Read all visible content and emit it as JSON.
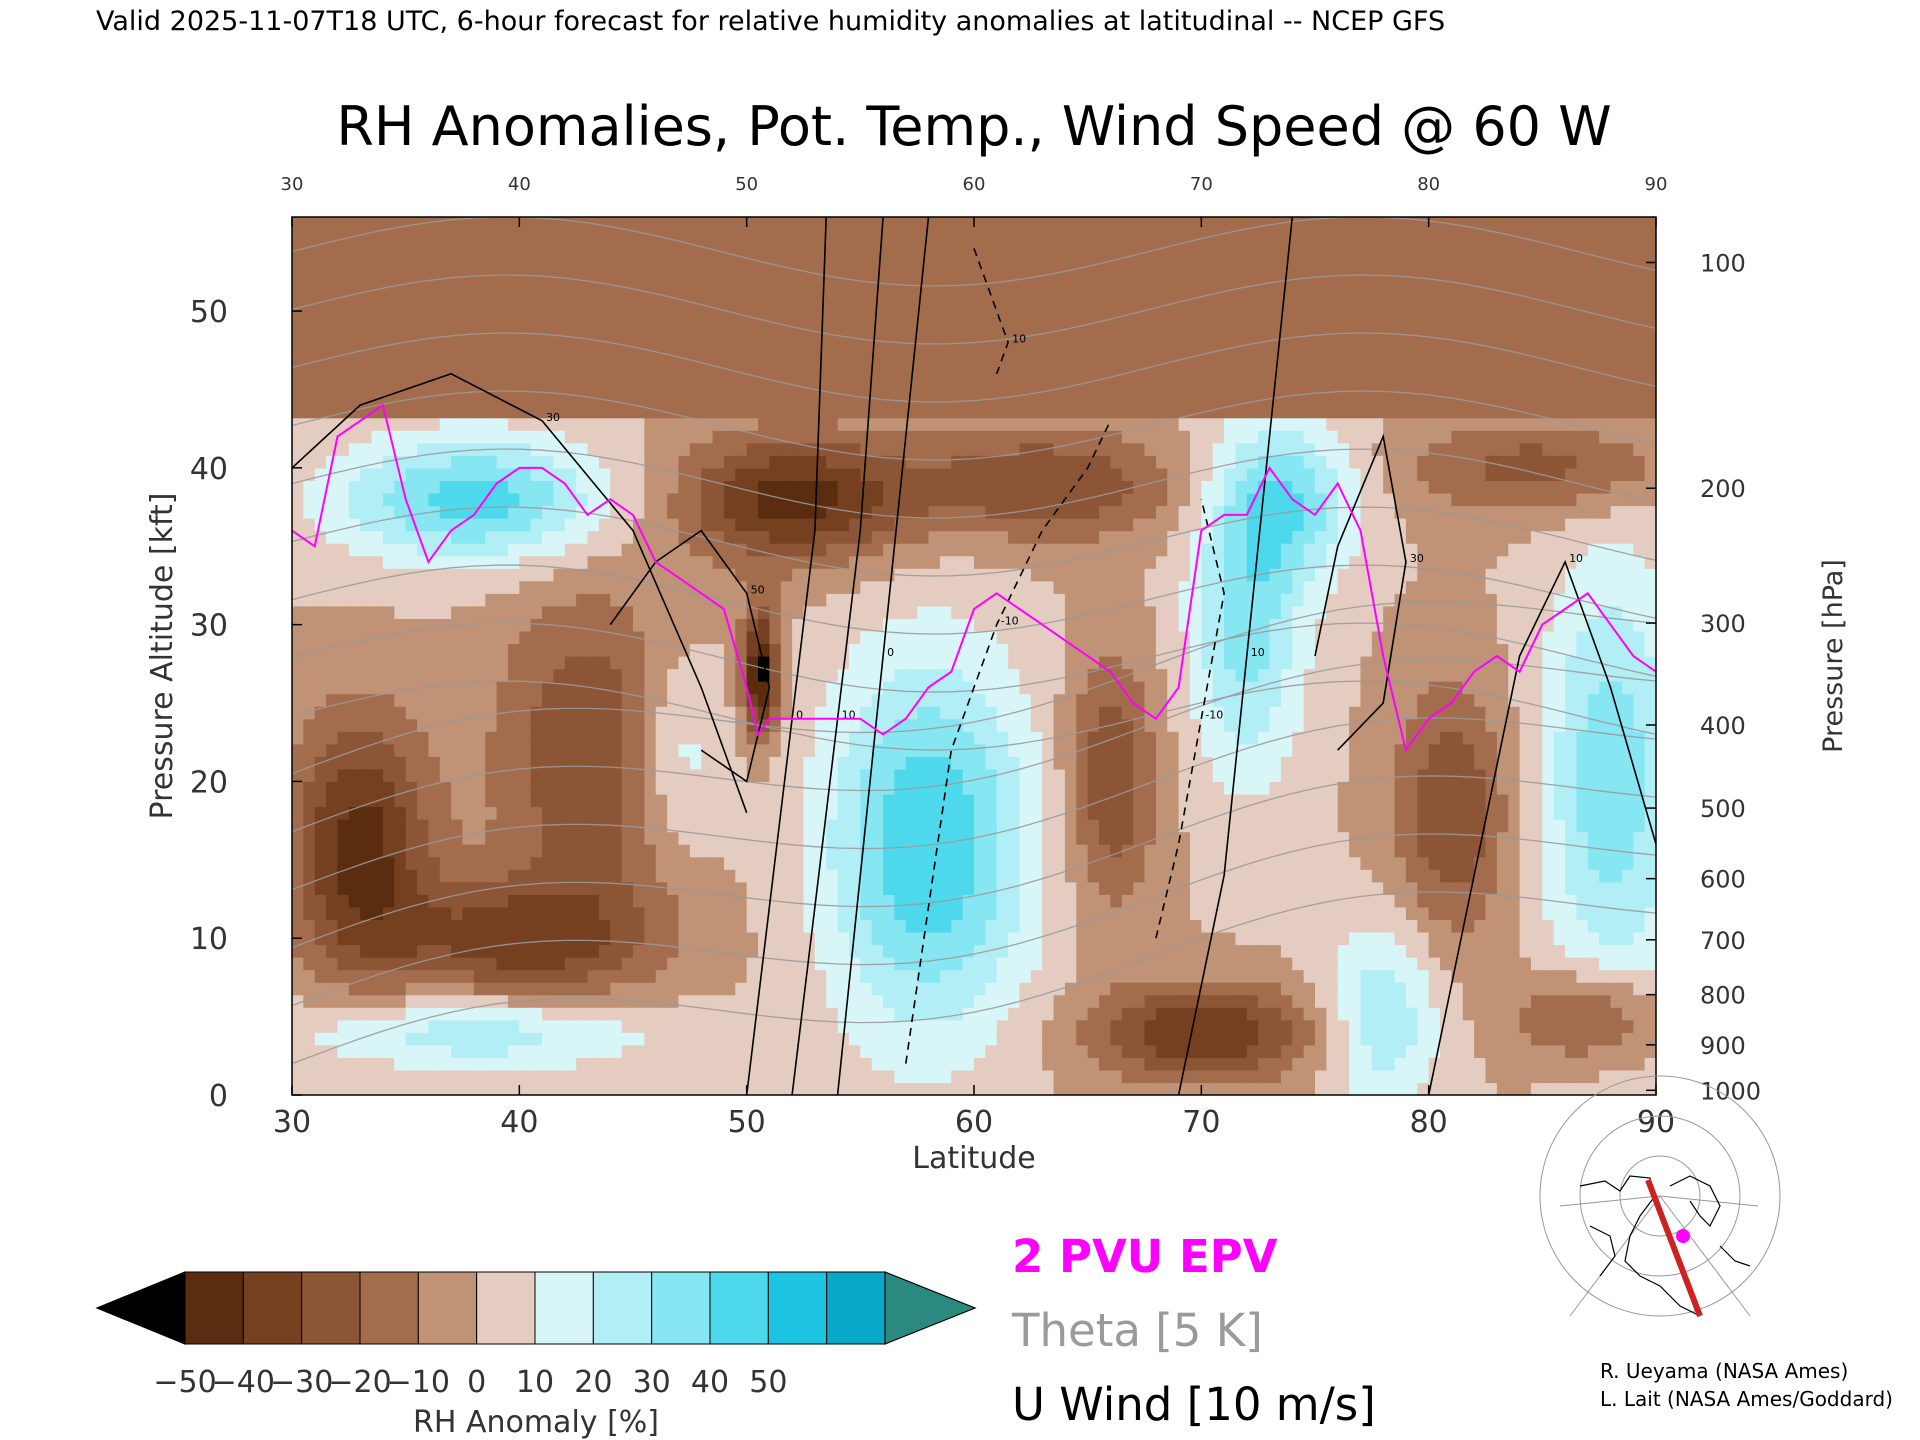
{
  "header": "Valid 2025-11-07T18 UTC, 6-hour forecast for relative humidity anomalies at latitudinal -- NCEP GFS",
  "credits": [
    "R. Ueyama (NASA Ames)",
    "L. Lait (NASA Ames/Goddard)"
  ],
  "legend_lines": {
    "epv": "2 PVU EPV",
    "theta": "Theta [5 K]",
    "wind": "U Wind [10 m/s]"
  },
  "colors": {
    "epv": "#ff00ff",
    "theta": "#9a9a9a",
    "wind": "#000000",
    "section_line": "#cc2222"
  },
  "chart_data": {
    "type": "heatmap",
    "title": "RH Anomalies, Pot. Temp., Wind Speed @ 60 W",
    "xlabel": "Latitude",
    "ylabel": "Pressure Altitude [kft]",
    "y2label": "Pressure [hPa]",
    "xlim": [
      30,
      90
    ],
    "ylim": [
      0,
      56
    ],
    "x_ticks": [
      30,
      40,
      50,
      60,
      70,
      80,
      90
    ],
    "top_ticks": [
      30,
      40,
      50,
      60,
      70,
      80,
      90
    ],
    "y_ticks": [
      0,
      10,
      20,
      30,
      40,
      50
    ],
    "pressure_ticks": [
      {
        "hPa": "100",
        "kft": 53.1
      },
      {
        "hPa": "200",
        "kft": 38.7
      },
      {
        "hPa": "300",
        "kft": 30.1
      },
      {
        "hPa": "400",
        "kft": 23.6
      },
      {
        "hPa": "500",
        "kft": 18.3
      },
      {
        "hPa": "600",
        "kft": 13.8
      },
      {
        "hPa": "700",
        "kft": 9.9
      },
      {
        "hPa": "800",
        "kft": 6.4
      },
      {
        "hPa": "900",
        "kft": 3.2
      },
      {
        "hPa": "1000",
        "kft": 0.3
      }
    ],
    "colorbar": {
      "label": "RH Anomaly [%]",
      "tick_labels": [
        "−50",
        "−40",
        "−30",
        "−20",
        "−10",
        "0",
        "10",
        "20",
        "30",
        "40",
        "50"
      ],
      "levels": [
        -50,
        -40,
        -30,
        -20,
        -10,
        0,
        10,
        20,
        30,
        40,
        50
      ],
      "colors": [
        "#000000",
        "#5a2c10",
        "#744020",
        "#8c5535",
        "#a36c4c",
        "#c09276",
        "#e5ccc0",
        "#d8f6f8",
        "#b2eef6",
        "#86e6f2",
        "#4ed8ec",
        "#1cc4e2",
        "#0aa8c8",
        "#2a8a80"
      ]
    },
    "epv_2pvu": {
      "x": [
        30,
        31,
        32,
        33,
        34,
        35,
        36,
        37,
        38,
        39,
        40,
        41,
        42,
        43,
        44,
        45,
        46,
        47,
        48,
        49,
        50,
        50.5,
        51,
        52,
        53,
        54,
        55,
        56,
        57,
        58,
        59,
        60,
        61,
        62,
        63,
        64,
        65,
        66,
        67,
        68,
        69,
        70,
        71,
        72,
        73,
        74,
        75,
        76,
        77,
        78,
        79,
        80,
        81,
        82,
        83,
        84,
        85,
        86,
        87,
        88,
        89,
        90
      ],
      "y": [
        36,
        35,
        42,
        43,
        44,
        38,
        34,
        36,
        37,
        39,
        40,
        40,
        39,
        37,
        38,
        37,
        34,
        33,
        32,
        31,
        26,
        23,
        24,
        24,
        24,
        24,
        24,
        23,
        24,
        26,
        27,
        31,
        32,
        31,
        30,
        29,
        28,
        27,
        25,
        24,
        26,
        36,
        37,
        37,
        40,
        38,
        37,
        39,
        36,
        28,
        22,
        24,
        25,
        27,
        28,
        27,
        30,
        31,
        32,
        30,
        28,
        27
      ]
    },
    "u_wind_contours": [
      {
        "level": "0",
        "x": [
          50,
          51,
          52,
          53,
          53.5
        ],
        "y": [
          0,
          12,
          24,
          36,
          56
        ]
      },
      {
        "level": "10",
        "x": [
          52,
          53,
          54,
          55,
          56
        ],
        "y": [
          0,
          12,
          24,
          36,
          56
        ]
      },
      {
        "level": "0",
        "x": [
          54,
          55,
          56,
          57,
          58
        ],
        "y": [
          0,
          14,
          28,
          42,
          56
        ]
      },
      {
        "level": "30",
        "x": [
          30,
          33,
          37,
          41,
          45,
          48,
          50
        ],
        "y": [
          40,
          44,
          46,
          43,
          36,
          26,
          18
        ]
      },
      {
        "level": "50",
        "x": [
          44,
          46,
          48,
          50,
          51,
          50,
          48
        ],
        "y": [
          30,
          34,
          36,
          32,
          26,
          20,
          22
        ]
      },
      {
        "level": "10",
        "x": [
          69,
          71,
          72,
          73,
          74
        ],
        "y": [
          0,
          14,
          28,
          42,
          56
        ]
      },
      {
        "level": "30",
        "x": [
          75,
          76,
          78,
          79,
          78,
          76
        ],
        "y": [
          28,
          35,
          42,
          34,
          25,
          22
        ]
      },
      {
        "level": "10",
        "x": [
          80,
          82,
          84,
          86,
          88,
          90
        ],
        "y": [
          0,
          14,
          28,
          34,
          26,
          16
        ]
      }
    ],
    "u_wind_negative_contours": [
      {
        "level": "-10",
        "x": [
          57,
          58,
          59,
          61,
          63,
          65,
          66
        ],
        "y": [
          2,
          12,
          22,
          30,
          36,
          40,
          43
        ]
      },
      {
        "level": "-10",
        "x": [
          68,
          69,
          70,
          71,
          70
        ],
        "y": [
          10,
          16,
          24,
          32,
          38
        ]
      },
      {
        "level": "10",
        "x": [
          60,
          61,
          61.5,
          61
        ],
        "y": [
          54,
          50,
          48,
          46
        ]
      }
    ],
    "theta_levels": [
      290,
      300,
      310,
      320,
      330,
      340,
      350,
      360,
      370,
      380,
      390,
      400,
      410,
      420,
      430
    ]
  }
}
